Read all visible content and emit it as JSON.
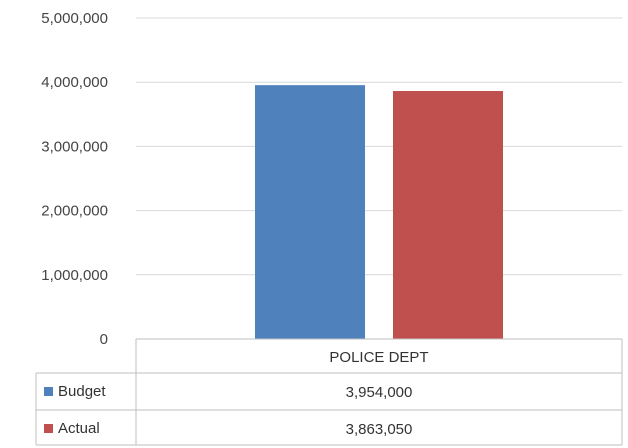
{
  "chart_data": {
    "type": "bar",
    "categories": [
      "POLICE DEPT"
    ],
    "series": [
      {
        "name": "Budget",
        "values": [
          3954000
        ],
        "color": "#4F81BD"
      },
      {
        "name": "Actual",
        "values": [
          3863050
        ],
        "color": "#C0504D"
      }
    ],
    "value_labels": [
      "3,954,000",
      "3,863,050"
    ],
    "yticks": [
      "0",
      "1,000,000",
      "2,000,000",
      "3,000,000",
      "4,000,000",
      "5,000,000"
    ],
    "ylim": [
      0,
      5000000
    ],
    "grid": true,
    "legend": "data-table"
  },
  "colors": {
    "gridline": "#D9D9D9",
    "table_border": "#BFBFBF"
  }
}
